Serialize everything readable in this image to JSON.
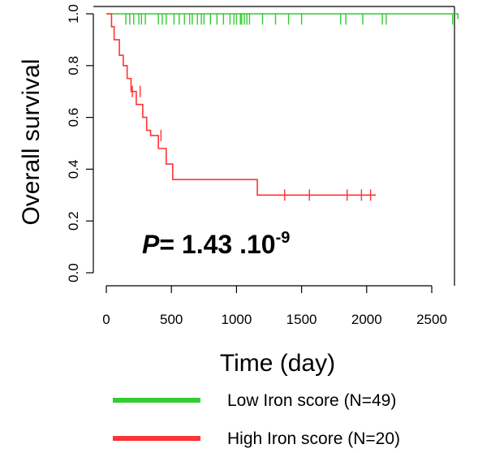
{
  "chart_data": {
    "type": "line",
    "subtype": "kaplan-meier",
    "xlabel": "Time (day)",
    "ylabel": "Overall survival",
    "xlim": [
      0,
      2700
    ],
    "ylim": [
      0,
      1
    ],
    "xticks": [
      0,
      500,
      1000,
      1500,
      2000,
      2500
    ],
    "yticks": [
      "0.0",
      "0.2",
      "0.4",
      "0.6",
      "0.8",
      "1.0"
    ],
    "annotation": {
      "p_italic": "P",
      "p_text": "= 1.43 .10",
      "p_sup": "-9"
    },
    "legend_position": "bottom",
    "series": [
      {
        "name": "Low Iron score (N=49)",
        "color": "#33cc33",
        "steps": [
          [
            0,
            1.0
          ],
          [
            2700,
            0.98
          ]
        ],
        "censor_x": [
          150,
          180,
          210,
          250,
          270,
          300,
          400,
          430,
          460,
          520,
          560,
          600,
          640,
          660,
          700,
          730,
          750,
          800,
          850,
          900,
          950,
          980,
          1000,
          1030,
          1040,
          1060,
          1080,
          1100,
          1200,
          1300,
          1400,
          1500,
          1800,
          1840,
          1970,
          2120,
          2150,
          2660
        ],
        "censor_y": 0.98
      },
      {
        "name": "High Iron score (N=20)",
        "color": "#ff3333",
        "steps": [
          [
            0,
            1.0
          ],
          [
            40,
            0.95
          ],
          [
            60,
            0.9
          ],
          [
            100,
            0.84
          ],
          [
            130,
            0.8
          ],
          [
            160,
            0.75
          ],
          [
            190,
            0.7
          ],
          [
            230,
            0.65
          ],
          [
            280,
            0.6
          ],
          [
            310,
            0.55
          ],
          [
            340,
            0.53
          ],
          [
            400,
            0.48
          ],
          [
            460,
            0.42
          ],
          [
            510,
            0.36
          ],
          [
            1160,
            0.3
          ],
          [
            2070,
            0.3
          ]
        ],
        "censor": [
          [
            200,
            0.7
          ],
          [
            260,
            0.7
          ],
          [
            420,
            0.53
          ],
          [
            1370,
            0.3
          ],
          [
            1560,
            0.3
          ],
          [
            1850,
            0.3
          ],
          [
            1960,
            0.3
          ],
          [
            2030,
            0.3
          ]
        ]
      }
    ]
  }
}
